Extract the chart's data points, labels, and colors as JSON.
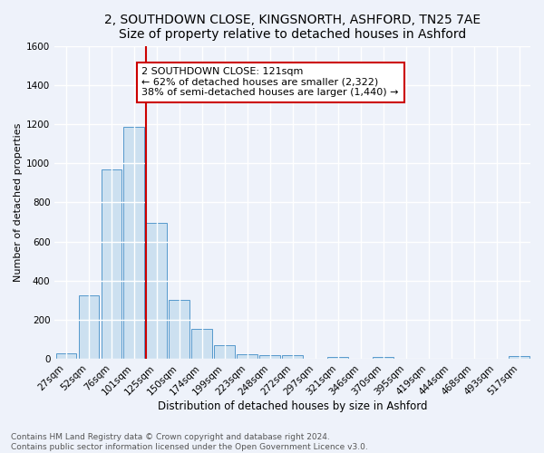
{
  "title1": "2, SOUTHDOWN CLOSE, KINGSNORTH, ASHFORD, TN25 7AE",
  "title2": "Size of property relative to detached houses in Ashford",
  "xlabel": "Distribution of detached houses by size in Ashford",
  "ylabel": "Number of detached properties",
  "categories": [
    "27sqm",
    "52sqm",
    "76sqm",
    "101sqm",
    "125sqm",
    "150sqm",
    "174sqm",
    "199sqm",
    "223sqm",
    "248sqm",
    "272sqm",
    "297sqm",
    "321sqm",
    "346sqm",
    "370sqm",
    "395sqm",
    "419sqm",
    "444sqm",
    "468sqm",
    "493sqm",
    "517sqm"
  ],
  "values": [
    30,
    325,
    968,
    1185,
    695,
    300,
    155,
    70,
    25,
    18,
    18,
    0,
    12,
    0,
    12,
    0,
    0,
    0,
    0,
    0,
    15
  ],
  "bar_color": "#cce0f0",
  "bar_edge_color": "#5599cc",
  "red_line_index": 4,
  "annotation_text": "2 SOUTHDOWN CLOSE: 121sqm\n← 62% of detached houses are smaller (2,322)\n38% of semi-detached houses are larger (1,440) →",
  "annotation_box_color": "#ffffff",
  "annotation_box_edge_color": "#cc0000",
  "red_line_color": "#cc0000",
  "ylim": [
    0,
    1600
  ],
  "yticks": [
    0,
    200,
    400,
    600,
    800,
    1000,
    1200,
    1400,
    1600
  ],
  "footnote": "Contains HM Land Registry data © Crown copyright and database right 2024.\nContains public sector information licensed under the Open Government Licence v3.0.",
  "bg_color": "#eef2fa",
  "grid_color": "#ffffff",
  "title1_fontsize": 10,
  "title2_fontsize": 9,
  "xlabel_fontsize": 8.5,
  "ylabel_fontsize": 8,
  "tick_fontsize": 7.5,
  "annotation_fontsize": 8,
  "footnote_fontsize": 6.5
}
